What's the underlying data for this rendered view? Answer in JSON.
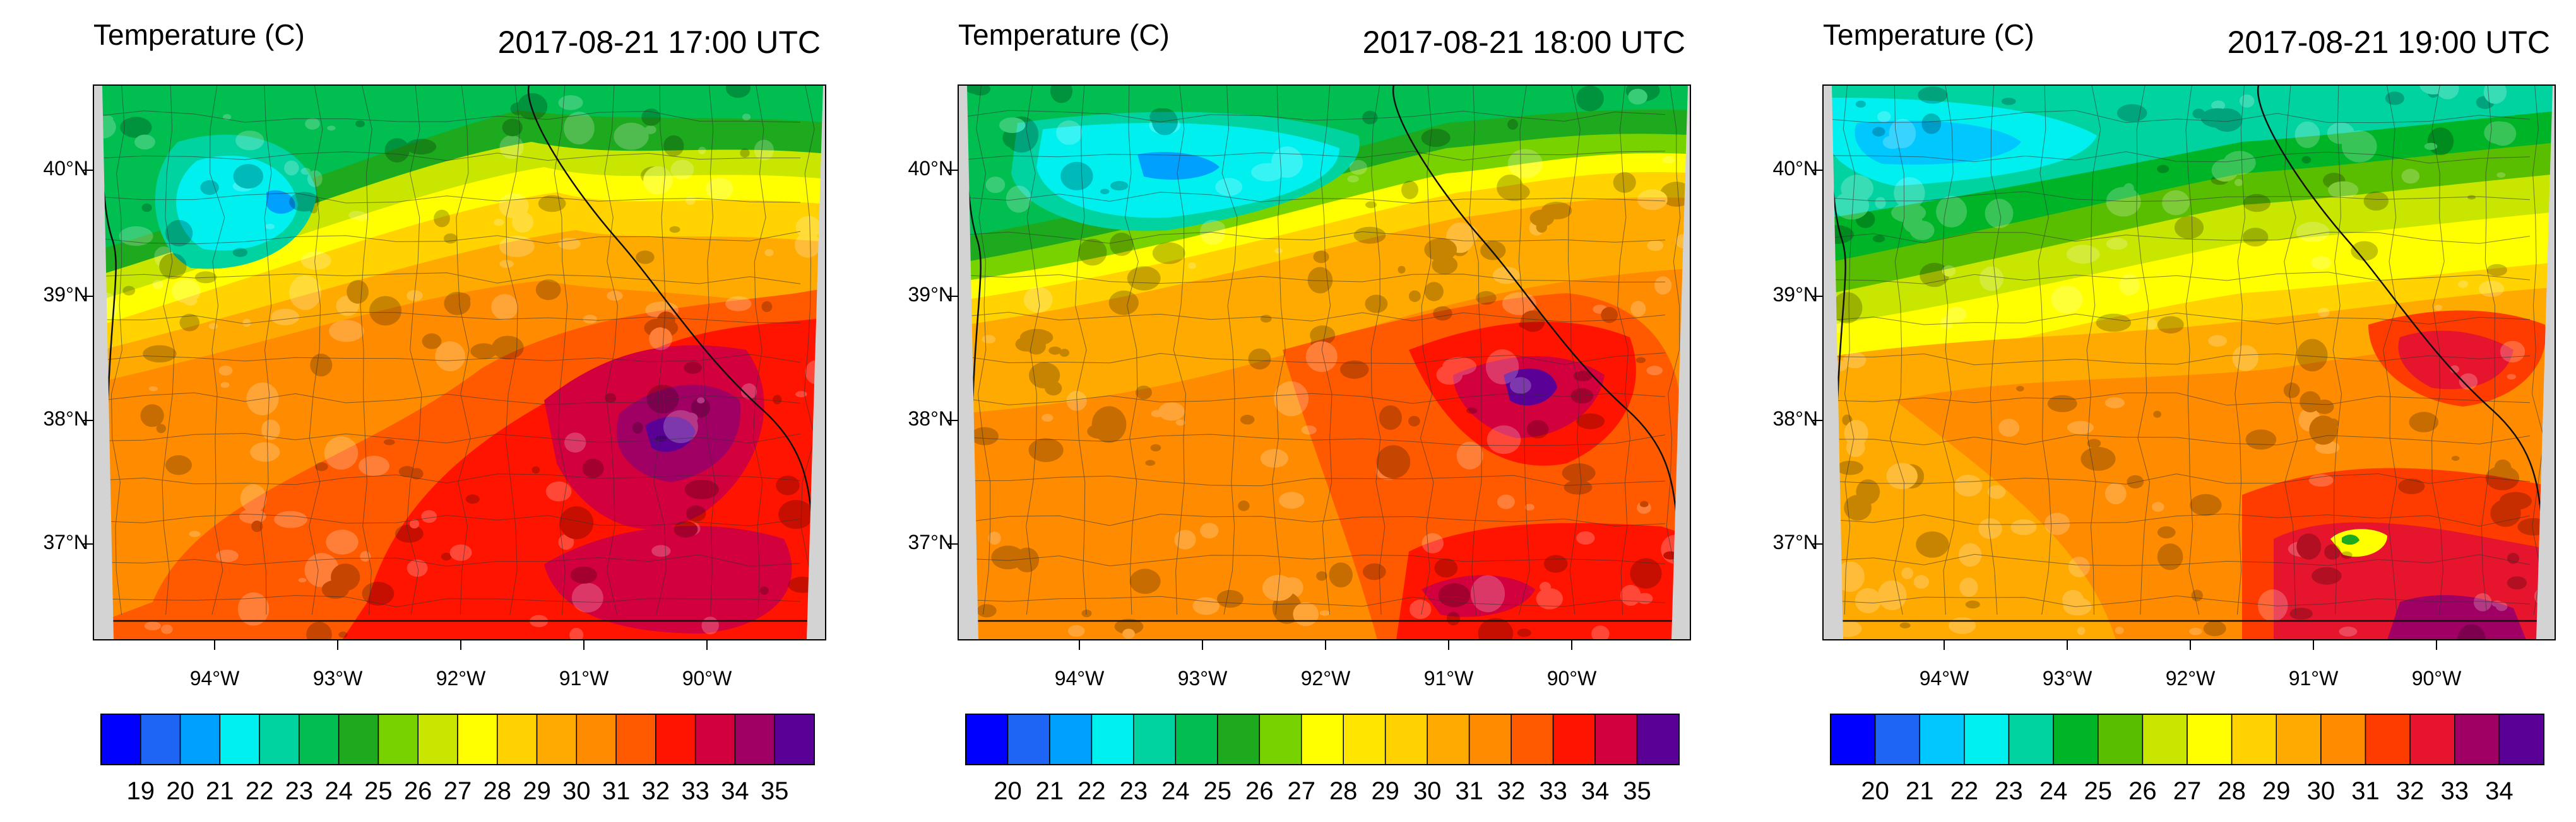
{
  "panels": [
    {
      "title": "Temperature (C)",
      "time": "2017-08-21 17:00 UTC",
      "lat_labels": [
        "40°N",
        "39°N",
        "38°N",
        "37°N"
      ],
      "lon_labels": [
        "94°W",
        "93°W",
        "92°W",
        "91°W",
        "90°W"
      ],
      "colorbar": {
        "labels": [
          "19",
          "20",
          "21",
          "22",
          "23",
          "24",
          "25",
          "26",
          "27",
          "28",
          "29",
          "30",
          "31",
          "32",
          "33",
          "34",
          "35"
        ],
        "colors": [
          "#0000ff",
          "#1e64f5",
          "#00a0ff",
          "#00f0f0",
          "#00d2a0",
          "#00be50",
          "#1eaa1e",
          "#78d200",
          "#c8e600",
          "#ffff00",
          "#ffd200",
          "#ffaa00",
          "#ff8c00",
          "#ff5a00",
          "#ff1400",
          "#d2003c",
          "#a00064",
          "#5a0096"
        ]
      }
    },
    {
      "title": "Temperature (C)",
      "time": "2017-08-21 18:00 UTC",
      "lat_labels": [
        "40°N",
        "39°N",
        "38°N",
        "37°N"
      ],
      "lon_labels": [
        "94°W",
        "93°W",
        "92°W",
        "91°W",
        "90°W"
      ],
      "colorbar": {
        "labels": [
          "20",
          "21",
          "22",
          "23",
          "24",
          "25",
          "26",
          "27",
          "28",
          "29",
          "30",
          "31",
          "32",
          "33",
          "34",
          "35"
        ],
        "colors": [
          "#0000ff",
          "#1e64f5",
          "#00a0ff",
          "#00f0f0",
          "#00d2a0",
          "#00be50",
          "#1eaa1e",
          "#78d200",
          "#ffff00",
          "#ffe600",
          "#ffd200",
          "#ffaa00",
          "#ff8c00",
          "#ff5a00",
          "#ff1400",
          "#d2003c",
          "#5a0096"
        ]
      }
    },
    {
      "title": "Temperature (C)",
      "time": "2017-08-21 19:00 UTC",
      "lat_labels": [
        "40°N",
        "39°N",
        "38°N",
        "37°N"
      ],
      "lon_labels": [
        "94°W",
        "93°W",
        "92°W",
        "91°W",
        "90°W"
      ],
      "colorbar": {
        "labels": [
          "20",
          "21",
          "22",
          "23",
          "24",
          "25",
          "26",
          "27",
          "28",
          "29",
          "30",
          "31",
          "32",
          "33",
          "34"
        ],
        "colors": [
          "#0000ff",
          "#1e64f5",
          "#00c8ff",
          "#00f0f0",
          "#00d2a0",
          "#00b428",
          "#5abe00",
          "#c8e600",
          "#ffff00",
          "#ffd200",
          "#ffaa00",
          "#ff8c00",
          "#ff3c00",
          "#e6142d",
          "#a00064",
          "#5a0096"
        ]
      }
    }
  ]
}
